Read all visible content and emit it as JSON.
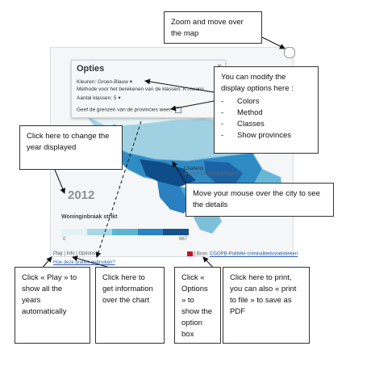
{
  "map": {
    "options_panel": {
      "title": "Opties",
      "close_glyph": "×",
      "colors_row": "Kleuren: Groen-Blauw",
      "method_row": "Methode voor het berekenen van de klassen: K-means",
      "classes_row": "Aantal klassen: 5",
      "provinces_row": "Geef de grenzen van de provincies weer:"
    },
    "year": "2012",
    "subject": "Woninginbraak strikt",
    "legend_min": "0",
    "legend_max": "667",
    "legend_colors": [
      "#e3f2f7",
      "#a6d8e6",
      "#5bb5d3",
      "#2a84c2",
      "#13528f"
    ],
    "city_label": "Charleroi",
    "city_value": "(Feiten / 10000 huisvestingen)",
    "bottom_links": "Play | Info | Options |",
    "source_prefix": "| Bron:",
    "source_link": "CGOPB-Politiële criminaliteitsstatistieken",
    "faq_link": "Hoe deze grafiek gebruiken?"
  },
  "annotations": {
    "zoom": "Zoom and move over the map",
    "options_intro": "You can modify the display options here :",
    "options_items": [
      "Colors",
      "Method",
      "Classes",
      "Show provinces"
    ],
    "year": "Click here to change the year displayed",
    "city": "Move your mouse over the city to see the details",
    "play": "Click « Play » to show all the years automatically",
    "info": "Click here to get information over the chart",
    "options_click": "Click « Options » to show the option box",
    "print": "Click here to print, you can also « print to file » to save as PDF"
  }
}
